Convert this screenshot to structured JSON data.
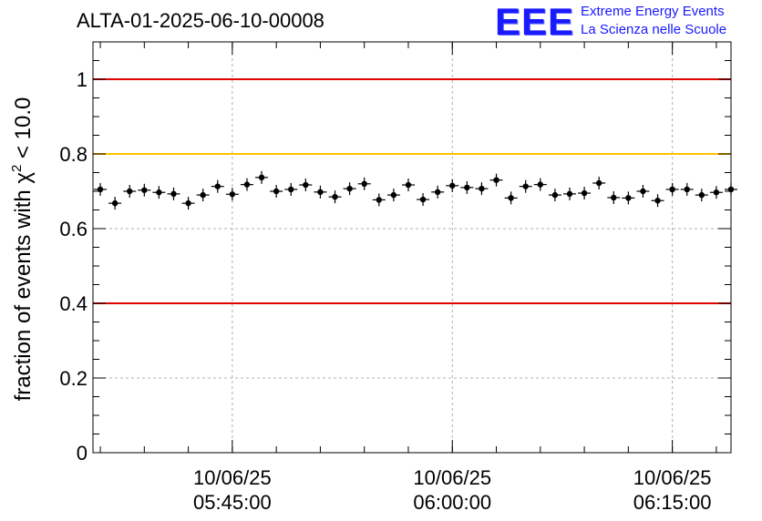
{
  "chart_data": {
    "type": "scatter",
    "title": "ALTA-01-2025-06-10-00008",
    "ylabel_main": "fraction of events with χ",
    "ylabel_sup": "2",
    "ylabel_tail": " < 10.0",
    "ylim": [
      0,
      1.1
    ],
    "yticks": [
      0,
      0.2,
      0.4,
      0.6,
      0.8,
      1
    ],
    "ytick_labels": [
      "0",
      "0.2",
      "0.4",
      "0.6",
      "0.8",
      "1"
    ],
    "xlim": [
      "2025-06-10 05:35:30",
      "2025-06-10 06:19:00"
    ],
    "xticks": [
      {
        "time": "2025-06-10 05:45:00",
        "date": "10/06/25",
        "clock": "05:45:00"
      },
      {
        "time": "2025-06-10 06:00:00",
        "date": "10/06/25",
        "clock": "06:00:00"
      },
      {
        "time": "2025-06-10 06:15:00",
        "date": "10/06/25",
        "clock": "06:15:00"
      }
    ],
    "grid": true,
    "reference_lines": [
      {
        "y": 1.0,
        "color": "#e00000"
      },
      {
        "y": 0.8,
        "color": "#ffc000"
      },
      {
        "y": 0.4,
        "color": "#e00000"
      }
    ],
    "series": [
      {
        "marker_color": "#000000",
        "x": [
          "05:36:00",
          "05:37:00",
          "05:38:00",
          "05:39:00",
          "05:40:00",
          "05:41:00",
          "05:42:00",
          "05:43:00",
          "05:44:00",
          "05:45:00",
          "05:46:00",
          "05:47:00",
          "05:48:00",
          "05:49:00",
          "05:50:00",
          "05:51:00",
          "05:52:00",
          "05:53:00",
          "05:54:00",
          "05:55:00",
          "05:56:00",
          "05:57:00",
          "05:58:00",
          "05:59:00",
          "06:00:00",
          "06:01:00",
          "06:02:00",
          "06:03:00",
          "06:04:00",
          "06:05:00",
          "06:06:00",
          "06:07:00",
          "06:08:00",
          "06:09:00",
          "06:10:00",
          "06:11:00",
          "06:12:00",
          "06:13:00",
          "06:14:00",
          "06:15:00",
          "06:16:00",
          "06:17:00",
          "06:18:00",
          "06:19:00"
        ],
        "y": [
          0.705,
          0.668,
          0.7,
          0.703,
          0.697,
          0.693,
          0.668,
          0.69,
          0.713,
          0.692,
          0.718,
          0.737,
          0.7,
          0.705,
          0.717,
          0.698,
          0.685,
          0.707,
          0.72,
          0.677,
          0.69,
          0.717,
          0.678,
          0.698,
          0.715,
          0.71,
          0.707,
          0.73,
          0.682,
          0.713,
          0.718,
          0.69,
          0.693,
          0.695,
          0.722,
          0.683,
          0.682,
          0.7,
          0.675,
          0.705,
          0.705,
          0.69,
          0.697,
          0.705
        ]
      }
    ]
  },
  "logo": {
    "letters": "EEE",
    "line1": "Extreme Energy Events",
    "line2": "La Scienza nelle Scuole",
    "color": "#1a1aff"
  }
}
